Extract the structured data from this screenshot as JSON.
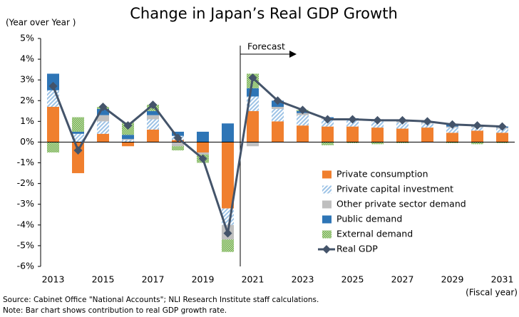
{
  "chart_data": {
    "type": "stacked_bar_line",
    "title": "Change in Japan’s Real GDP Growth",
    "y_axis_label": "(Year over Year )",
    "x_axis_label": "(Fiscal year)",
    "annotation": "Forecast",
    "source": "Source: Cabinet Office \"National Accounts\"; NLI Research Institute staff calculations.",
    "note": "Note: Bar chart shows contribution to real GDP growth rate.",
    "categories": [
      "2013",
      null,
      "2015",
      null,
      "2017",
      null,
      "2019",
      null,
      "2021",
      null,
      "2023",
      null,
      "2025",
      null,
      "2027",
      null,
      "2029",
      null,
      "2031"
    ],
    "series": [
      {
        "name": "Private consumption",
        "color": "#f07f2e",
        "pattern": "solid",
        "values": [
          1.7,
          -1.5,
          0.4,
          -0.2,
          0.6,
          0.1,
          -0.5,
          -3.2,
          1.5,
          1.0,
          0.8,
          0.75,
          0.75,
          0.7,
          0.65,
          0.7,
          0.45,
          0.55,
          0.45
        ]
      },
      {
        "name": "Private capital investment",
        "color": "#9dc3e6",
        "pattern": "hatch",
        "values": [
          0.8,
          0.4,
          0.6,
          0.1,
          0.5,
          0.2,
          0,
          -0.8,
          0.7,
          0.6,
          0.5,
          0.35,
          0.3,
          0.3,
          0.3,
          0.2,
          0.25,
          0.15,
          0.2
        ]
      },
      {
        "name": "Other private sector demand",
        "color": "#bfbfbf",
        "pattern": "solid",
        "values": [
          0,
          0,
          0.3,
          0.05,
          0.2,
          -0.2,
          -0.1,
          -0.7,
          -0.2,
          0.1,
          0.1,
          0.05,
          0.05,
          0.05,
          0.05,
          0.05,
          0.05,
          0.05,
          0.05
        ]
      },
      {
        "name": "Public demand",
        "color": "#2e75b6",
        "pattern": "solid",
        "values": [
          0.8,
          0.1,
          0.3,
          0.2,
          0.2,
          0.2,
          0.5,
          0.9,
          0.4,
          0.3,
          0.1,
          0.05,
          0.05,
          0.05,
          0.05,
          0.05,
          0.1,
          0.05,
          0.05
        ]
      },
      {
        "name": "External demand",
        "color": "#70ad47",
        "pattern": "dots",
        "values": [
          -0.5,
          0.7,
          0.1,
          0.6,
          0.3,
          -0.2,
          -0.4,
          -0.6,
          0.7,
          0,
          0.05,
          -0.15,
          -0.05,
          -0.1,
          -0.05,
          0,
          -0.05,
          -0.1,
          -0.05
        ]
      },
      {
        "name": "Real GDP",
        "color": "#44546a",
        "kind": "line",
        "values": [
          2.7,
          -0.4,
          1.7,
          0.8,
          1.8,
          0.2,
          -0.8,
          -4.4,
          3.1,
          2.0,
          1.55,
          1.1,
          1.1,
          1.05,
          1.05,
          1.0,
          0.85,
          0.8,
          0.75
        ]
      }
    ],
    "ylim": [
      -6,
      5
    ],
    "yticks": [
      {
        "value": -6,
        "label": "-6%"
      },
      {
        "value": -5,
        "label": "-5%"
      },
      {
        "value": -4,
        "label": "-4%"
      },
      {
        "value": -3,
        "label": "-3%"
      },
      {
        "value": -2,
        "label": "-2%"
      },
      {
        "value": -1,
        "label": "-1%"
      },
      {
        "value": 0,
        "label": "0%"
      },
      {
        "value": 1,
        "label": "1%"
      },
      {
        "value": 2,
        "label": "2%"
      },
      {
        "value": 3,
        "label": "3%"
      },
      {
        "value": 4,
        "label": "4%"
      },
      {
        "value": 5,
        "label": "5%"
      }
    ],
    "grid": false,
    "legend": "lower right"
  }
}
